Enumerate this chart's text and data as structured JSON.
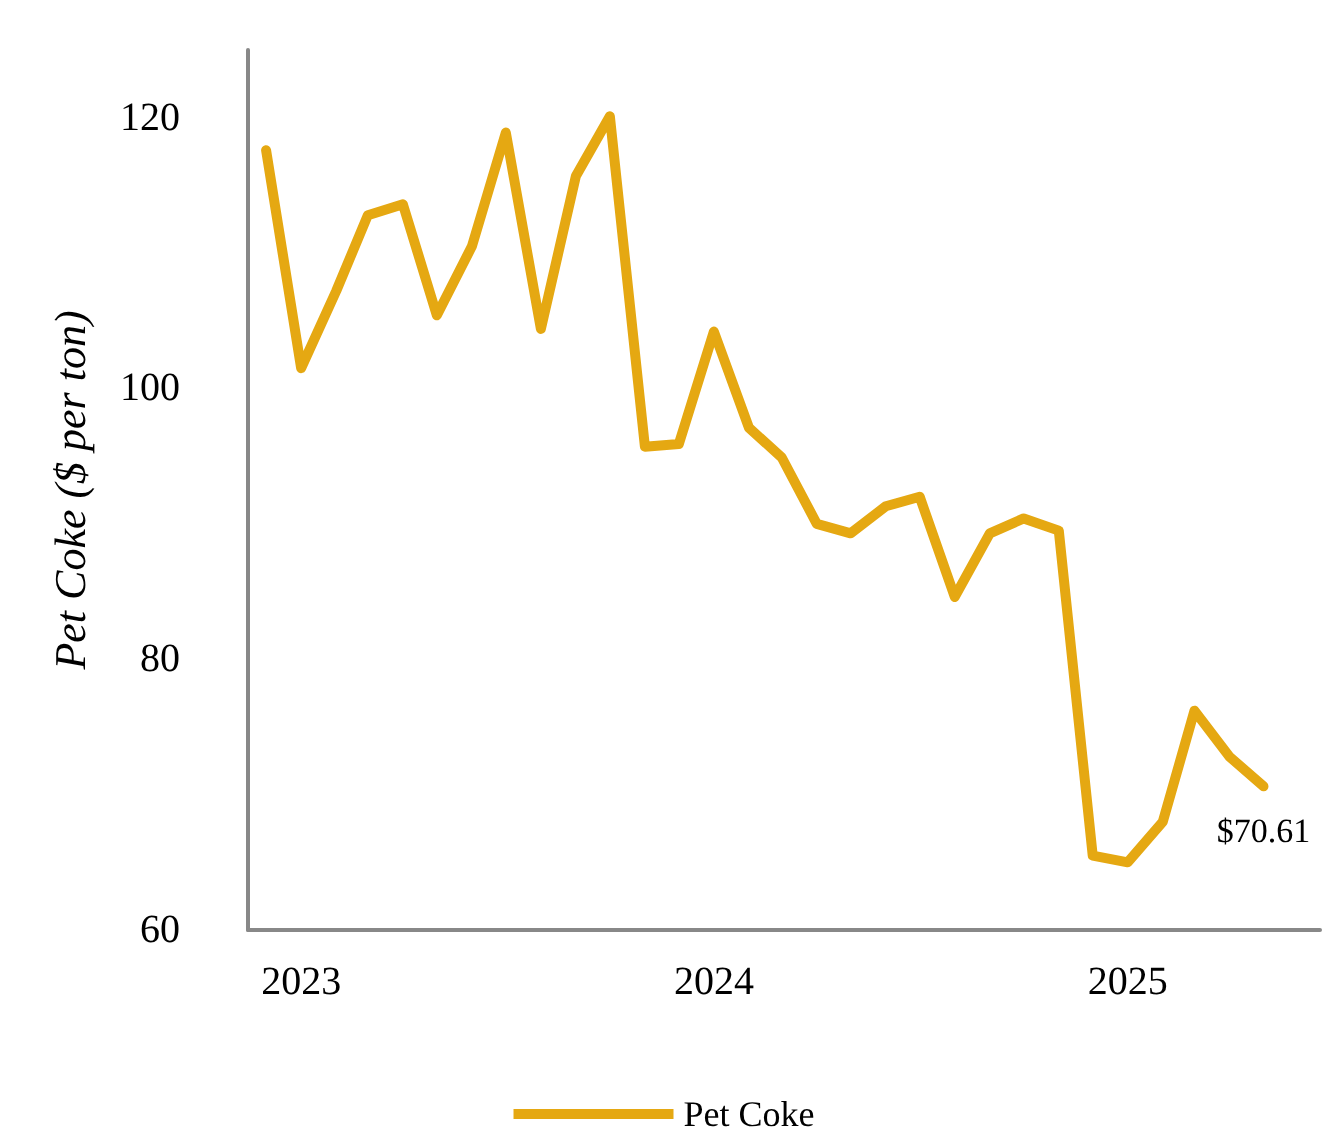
{
  "chart_data": {
    "type": "line",
    "ylabel": "Pet Coke ($ per ton)",
    "x": [
      "2022-12",
      "2023-01",
      "2023-02",
      "2023-03",
      "2023-04",
      "2023-05",
      "2023-06",
      "2023-07",
      "2023-08",
      "2023-09",
      "2023-10",
      "2023-11",
      "2023-12",
      "2024-01",
      "2024-02",
      "2024-03",
      "2024-04",
      "2024-05",
      "2024-06",
      "2024-07",
      "2024-08",
      "2024-09",
      "2024-10",
      "2024-11",
      "2024-12",
      "2025-01",
      "2025-02",
      "2025-03",
      "2025-04",
      "2025-05"
    ],
    "series": [
      {
        "name": "Pet Coke",
        "color": "#e5a812",
        "values": [
          117.6,
          101.5,
          107.2,
          112.8,
          113.6,
          105.4,
          110.5,
          118.9,
          104.4,
          115.7,
          120.1,
          95.7,
          95.9,
          104.2,
          97.1,
          94.9,
          90.0,
          89.3,
          91.3,
          92.0,
          84.6,
          89.3,
          90.4,
          89.5,
          65.5,
          65.0,
          68.0,
          76.2,
          72.8,
          70.61
        ],
        "value_labels": [
          null,
          null,
          null,
          null,
          null,
          null,
          null,
          null,
          null,
          null,
          null,
          null,
          null,
          null,
          null,
          null,
          null,
          null,
          null,
          null,
          null,
          null,
          null,
          null,
          null,
          null,
          null,
          null,
          null,
          "$70.61"
        ]
      }
    ],
    "xlim": [
      "2022-11-15",
      "2025-06-20"
    ],
    "xticks": [
      {
        "value": "2023-01",
        "label": "2023"
      },
      {
        "value": "2024-01",
        "label": "2024"
      },
      {
        "value": "2025-01",
        "label": "2025"
      }
    ],
    "ylim": [
      60,
      125
    ],
    "yticks": [
      60,
      80,
      100,
      120
    ],
    "grid": false,
    "legend": "bottom",
    "marker": "none",
    "line_style": "solid"
  }
}
